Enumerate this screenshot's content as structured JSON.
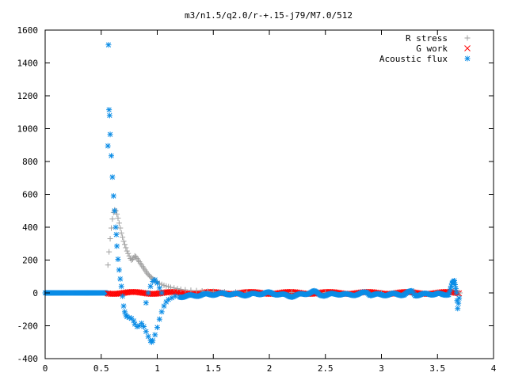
{
  "chart_data": {
    "type": "scatter",
    "title": "m3/n1.5/q2.0/r-+.15-j79/M7.0/512",
    "xlabel": "",
    "ylabel": "",
    "xlim": [
      0,
      4
    ],
    "ylim": [
      -400,
      1600
    ],
    "xticks": [
      "0",
      "0.5",
      "1",
      "1.5",
      "2",
      "2.5",
      "3",
      "3.5",
      "4"
    ],
    "yticks": [
      "-400",
      "-200",
      "0",
      "200",
      "400",
      "600",
      "800",
      "1000",
      "1200",
      "1400",
      "1600"
    ],
    "grid": false,
    "legend_position": "top-right",
    "series": [
      {
        "name": "R stress",
        "marker": "plus",
        "color": "#a0a0a0",
        "points": [
          [
            0.56,
            170
          ],
          [
            0.57,
            250
          ],
          [
            0.58,
            330
          ],
          [
            0.59,
            395
          ],
          [
            0.6,
            450
          ],
          [
            0.61,
            490
          ],
          [
            0.62,
            505
          ],
          [
            0.63,
            500
          ],
          [
            0.64,
            480
          ],
          [
            0.65,
            455
          ],
          [
            0.66,
            425
          ],
          [
            0.67,
            395
          ],
          [
            0.68,
            365
          ],
          [
            0.69,
            340
          ],
          [
            0.7,
            315
          ],
          [
            0.71,
            295
          ],
          [
            0.72,
            275
          ],
          [
            0.73,
            255
          ],
          [
            0.74,
            240
          ],
          [
            0.75,
            225
          ],
          [
            0.76,
            210
          ],
          [
            0.77,
            200
          ],
          [
            0.78,
            205
          ],
          [
            0.79,
            215
          ],
          [
            0.8,
            225
          ],
          [
            0.81,
            220
          ],
          [
            0.82,
            210
          ],
          [
            0.83,
            200
          ],
          [
            0.84,
            190
          ],
          [
            0.85,
            180
          ],
          [
            0.86,
            170
          ],
          [
            0.87,
            160
          ],
          [
            0.88,
            150
          ],
          [
            0.89,
            140
          ],
          [
            0.9,
            130
          ],
          [
            0.91,
            120
          ],
          [
            0.92,
            112
          ],
          [
            0.93,
            105
          ],
          [
            0.94,
            98
          ],
          [
            0.95,
            92
          ],
          [
            0.96,
            86
          ],
          [
            0.97,
            80
          ],
          [
            0.98,
            75
          ],
          [
            0.99,
            70
          ],
          [
            1.0,
            65
          ],
          [
            1.02,
            58
          ],
          [
            1.04,
            52
          ],
          [
            1.06,
            46
          ],
          [
            1.08,
            42
          ],
          [
            1.1,
            38
          ],
          [
            1.12,
            34
          ],
          [
            1.15,
            30
          ],
          [
            1.18,
            26
          ],
          [
            1.21,
            22
          ],
          [
            1.25,
            19
          ],
          [
            1.3,
            16
          ],
          [
            1.35,
            14
          ],
          [
            1.4,
            12
          ],
          [
            1.45,
            10
          ],
          [
            1.5,
            9
          ],
          [
            1.6,
            7
          ],
          [
            1.7,
            6
          ],
          [
            1.8,
            5
          ],
          [
            2.0,
            4
          ],
          [
            2.2,
            3
          ],
          [
            2.5,
            2
          ],
          [
            3.0,
            1
          ],
          [
            3.5,
            1
          ],
          [
            3.7,
            0
          ]
        ]
      },
      {
        "name": "G work",
        "marker": "cross",
        "color": "#ff0000",
        "band": {
          "x_from": 0.56,
          "x_to": 3.7,
          "y_from": -12,
          "y_to": 12
        }
      },
      {
        "name": "Acoustic flux",
        "marker": "star",
        "color": "#0a8ce6",
        "points": [
          [
            0.56,
            895
          ],
          [
            0.565,
            1510
          ],
          [
            0.57,
            1115
          ],
          [
            0.575,
            1080
          ],
          [
            0.58,
            965
          ],
          [
            0.59,
            835
          ],
          [
            0.6,
            705
          ],
          [
            0.61,
            590
          ],
          [
            0.62,
            500
          ],
          [
            0.63,
            400
          ],
          [
            0.635,
            355
          ],
          [
            0.64,
            285
          ],
          [
            0.65,
            205
          ],
          [
            0.66,
            140
          ],
          [
            0.67,
            85
          ],
          [
            0.68,
            40
          ],
          [
            0.69,
            -20
          ],
          [
            0.7,
            -80
          ],
          [
            0.71,
            -115
          ],
          [
            0.72,
            -135
          ],
          [
            0.73,
            -145
          ],
          [
            0.75,
            -150
          ],
          [
            0.77,
            -155
          ],
          [
            0.79,
            -170
          ],
          [
            0.8,
            -190
          ],
          [
            0.82,
            -205
          ],
          [
            0.84,
            -200
          ],
          [
            0.86,
            -185
          ],
          [
            0.88,
            -205
          ],
          [
            0.9,
            -235
          ],
          [
            0.92,
            -265
          ],
          [
            0.94,
            -290
          ],
          [
            0.95,
            -300
          ],
          [
            0.96,
            -290
          ],
          [
            0.98,
            -255
          ],
          [
            1.0,
            -210
          ],
          [
            1.02,
            -160
          ],
          [
            1.04,
            -115
          ],
          [
            1.06,
            -80
          ],
          [
            1.08,
            -55
          ],
          [
            1.1,
            -40
          ],
          [
            1.13,
            -30
          ],
          [
            1.16,
            -20
          ],
          [
            0.9,
            -60
          ],
          [
            0.92,
            0
          ],
          [
            0.94,
            40
          ],
          [
            0.96,
            70
          ],
          [
            0.98,
            80
          ],
          [
            1.0,
            60
          ],
          [
            1.02,
            30
          ],
          [
            1.04,
            0
          ]
        ],
        "baseline": {
          "x_from": 0,
          "x_to": 0.56,
          "y": 0
        },
        "oscillation": [
          [
            1.2,
            -22
          ],
          [
            1.3,
            -18
          ],
          [
            1.4,
            -12
          ],
          [
            1.5,
            -8
          ],
          [
            1.6,
            -5
          ],
          [
            1.7,
            -8
          ],
          [
            1.8,
            -12
          ],
          [
            1.9,
            -5
          ],
          [
            2.0,
            0
          ],
          [
            2.1,
            -10
          ],
          [
            2.2,
            -20
          ],
          [
            2.3,
            -8
          ],
          [
            2.4,
            8
          ],
          [
            2.45,
            -10
          ],
          [
            2.5,
            -14
          ],
          [
            2.6,
            -5
          ],
          [
            2.7,
            -12
          ],
          [
            2.8,
            -8
          ],
          [
            2.87,
            5
          ],
          [
            2.9,
            -10
          ],
          [
            3.0,
            -12
          ],
          [
            3.1,
            -8
          ],
          [
            3.2,
            -10
          ],
          [
            3.27,
            10
          ],
          [
            3.3,
            -12
          ],
          [
            3.4,
            -8
          ],
          [
            3.5,
            -5
          ],
          [
            3.55,
            -14
          ],
          [
            3.6,
            -5
          ],
          [
            3.63,
            60
          ],
          [
            3.65,
            70
          ],
          [
            3.67,
            -5
          ],
          [
            3.68,
            -100
          ],
          [
            3.7,
            0
          ]
        ]
      }
    ]
  }
}
